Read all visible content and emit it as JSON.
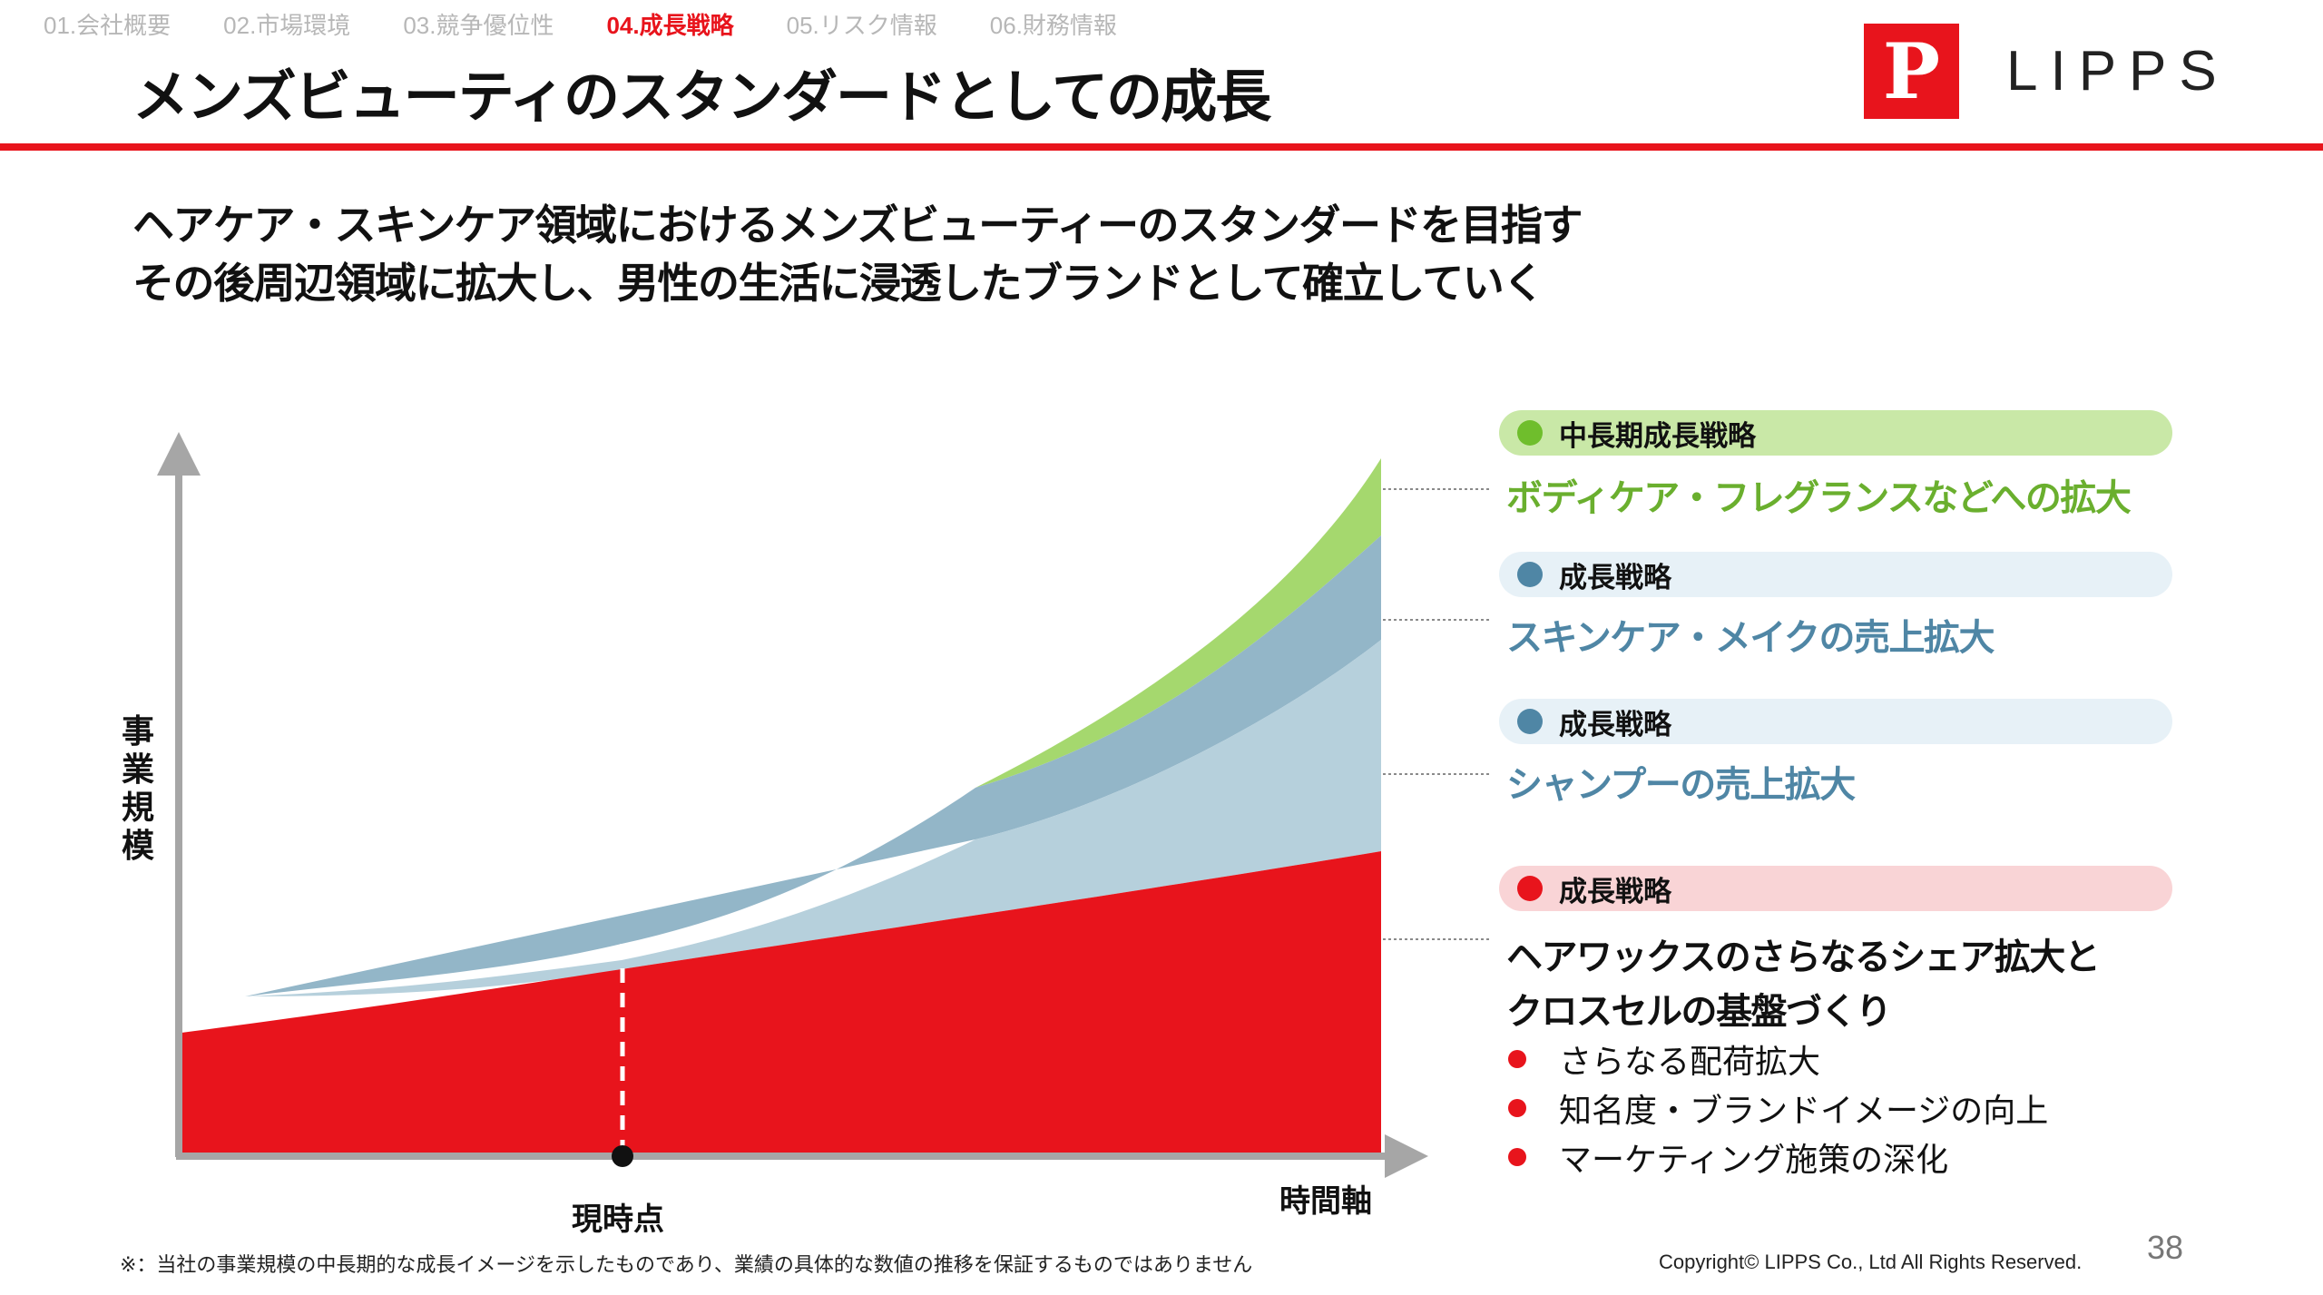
{
  "nav": {
    "items": [
      {
        "label": "01.会社概要",
        "active": false
      },
      {
        "label": "02.市場環境",
        "active": false
      },
      {
        "label": "03.競争優位性",
        "active": false
      },
      {
        "label": "04.成長戦略",
        "active": true
      },
      {
        "label": "05.リスク情報",
        "active": false
      },
      {
        "label": "06.財務情報",
        "active": false
      }
    ]
  },
  "header": {
    "title": "メンズビューティのスタンダードとしての成長",
    "logo_mark": "P",
    "logo_text": "LIPPS"
  },
  "subtitle": {
    "line1": "ヘアケア・スキンケア領域におけるメンズビューティーのスタンダードを目指す",
    "line2": "その後周辺領域に拡大し、男性の生活に浸透したブランドとして確立していく"
  },
  "diagram": {
    "y_axis_label": "事業規模",
    "now_label": "現時点",
    "time_label": "時間軸",
    "colors": {
      "red": "#e8141c",
      "light_blue": "#b6d0dc",
      "blue": "#93b6c8",
      "green": "#a5d86e",
      "axis": "#a6a6a6"
    }
  },
  "legend": [
    {
      "tag": "中長期成長戦略",
      "text": "ボディケア・フレグランスなどへの拡大",
      "dot_color": "#6fbe2c",
      "pill_bg": "#c9e8a7",
      "text_color": "#6aaf2e"
    },
    {
      "tag": "成長戦略",
      "text": "スキンケア・メイクの売上拡大",
      "dot_color": "#4f86a5",
      "pill_bg": "#e7f1f7",
      "text_color": "#4f86a5"
    },
    {
      "tag": "成長戦略",
      "text": "シャンプーの売上拡大",
      "dot_color": "#4f86a5",
      "pill_bg": "#e7f1f7",
      "text_color": "#4f86a5"
    },
    {
      "tag": "成長戦略",
      "text_line1": "ヘアワックスのさらなるシェア拡大と",
      "text_line2": "クロスセルの基盤づくり",
      "dot_color": "#e8141c",
      "pill_bg": "#f9d4d6",
      "text_color": "#111111"
    }
  ],
  "bullets": [
    "さらなる配荷拡大",
    "知名度・ブランドイメージの向上",
    "マーケティング施策の深化"
  ],
  "footer": {
    "note": "※：当社の事業規模の中長期的な成長イメージを示したものであり、業績の具体的な数値の推移を保証するものではありません",
    "copyright": "Copyright© LIPPS Co., Ltd All Rights Reserved.",
    "page_number": "38"
  }
}
